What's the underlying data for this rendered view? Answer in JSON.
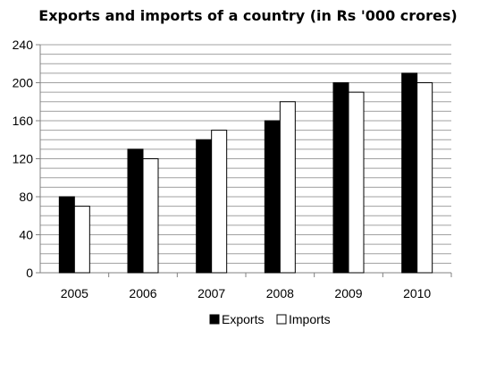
{
  "chart_data": {
    "type": "bar",
    "title": "Exports and imports of a country (in Rs '000 crores)",
    "xlabel": "",
    "ylabel": "",
    "categories": [
      "2005",
      "2006",
      "2007",
      "2008",
      "2009",
      "2010"
    ],
    "series": [
      {
        "name": "Exports",
        "values": [
          80,
          130,
          140,
          160,
          200,
          210
        ],
        "color": "#000000"
      },
      {
        "name": "Imports",
        "values": [
          70,
          120,
          150,
          180,
          190,
          200
        ],
        "color": "#ffffff"
      }
    ],
    "ylim": [
      0,
      240
    ],
    "yticks": [
      "0",
      "40",
      "80",
      "120",
      "160",
      "200",
      "240"
    ],
    "grid": true,
    "legend": "bottom"
  }
}
